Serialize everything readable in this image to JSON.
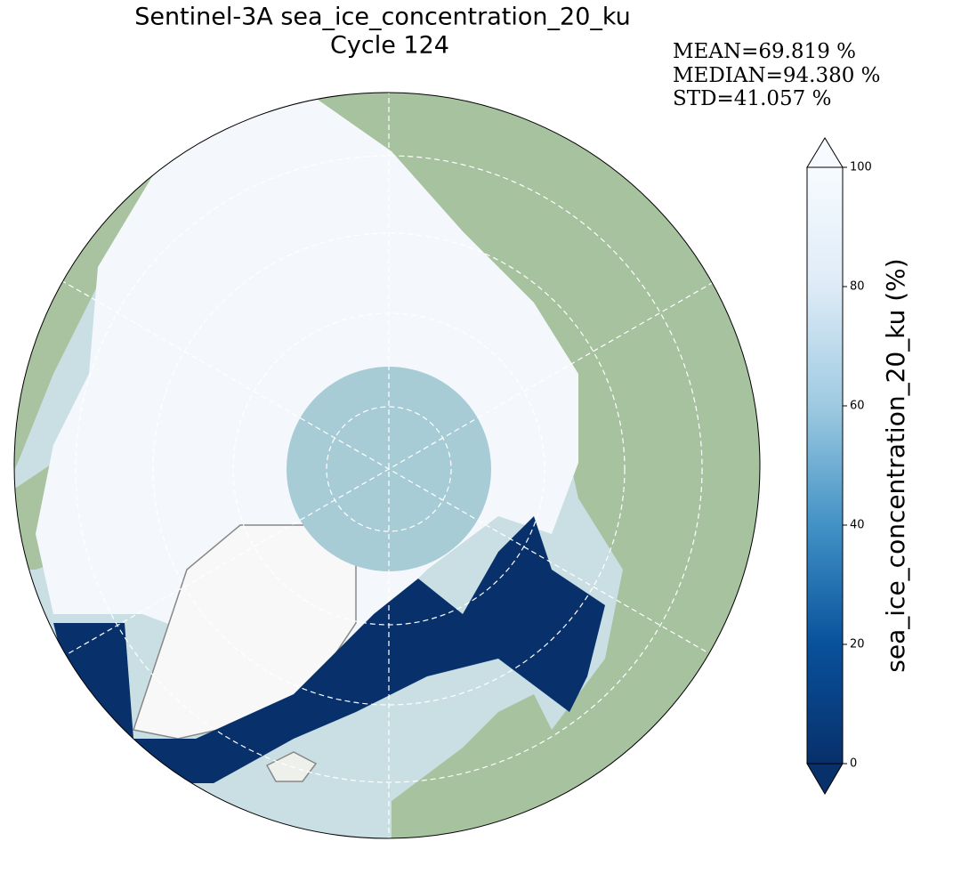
{
  "title": [
    "Sentinel-3A sea_ice_concentration_20_ku",
    "Cycle 124"
  ],
  "stats": [
    "MEAN=69.819 %",
    "MEDIAN=94.380 %",
    "STD=41.057 %"
  ],
  "colorbar": {
    "label": "sea_ice_concentration_20_ku (%)",
    "lim": [
      0,
      100
    ],
    "ticks": [
      0,
      20,
      40,
      60,
      80,
      100
    ]
  }
}
